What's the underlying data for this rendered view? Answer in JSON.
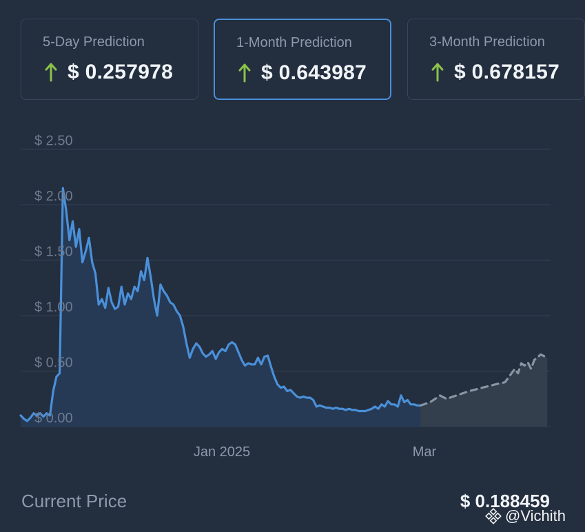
{
  "cards": [
    {
      "label": "5-Day Prediction",
      "value": "$ 0.257978",
      "trend": "up"
    },
    {
      "label": "1-Month Prediction",
      "value": "$ 0.643987",
      "trend": "up"
    },
    {
      "label": "3-Month Prediction",
      "value": "$ 0.678157",
      "trend": "up"
    }
  ],
  "colors": {
    "accent": "#4a90d9",
    "up": "#8bc34a",
    "forecast": "#8a95a3",
    "background": "#232e3f"
  },
  "footer": {
    "label": "Current Price",
    "value": "$ 0.188459"
  },
  "watermark": {
    "text": "@Vichith",
    "icon": "binance-logo-icon"
  },
  "chart_data": {
    "type": "line",
    "yticks": [
      "$ 0.00",
      "$ 0.50",
      "$ 1.00",
      "$ 1.50",
      "$ 2.00",
      "$ 2.50"
    ],
    "ylim": [
      0,
      2.5
    ],
    "xticks": [
      "Jan 2025",
      "Mar"
    ],
    "grid": true,
    "series": [
      {
        "style": "solid",
        "fill": true,
        "points": [
          [
            "2024-11-02",
            0.1
          ],
          [
            "2024-11-03",
            0.07
          ],
          [
            "2024-11-04",
            0.05
          ],
          [
            "2024-11-05",
            0.08
          ],
          [
            "2024-11-06",
            0.12
          ],
          [
            "2024-11-07",
            0.1
          ],
          [
            "2024-11-08",
            0.12
          ],
          [
            "2024-11-09",
            0.09
          ],
          [
            "2024-11-10",
            0.12
          ],
          [
            "2024-11-11",
            0.1
          ],
          [
            "2024-11-12",
            0.32
          ],
          [
            "2024-11-13",
            0.45
          ],
          [
            "2024-11-14",
            0.48
          ],
          [
            "2024-11-15",
            2.15
          ],
          [
            "2024-11-16",
            1.95
          ],
          [
            "2024-11-17",
            1.68
          ],
          [
            "2024-11-18",
            1.85
          ],
          [
            "2024-11-19",
            1.62
          ],
          [
            "2024-11-20",
            1.78
          ],
          [
            "2024-11-21",
            1.48
          ],
          [
            "2024-11-22",
            1.58
          ],
          [
            "2024-11-23",
            1.7
          ],
          [
            "2024-11-24",
            1.48
          ],
          [
            "2024-11-25",
            1.38
          ],
          [
            "2024-11-26",
            1.1
          ],
          [
            "2024-11-27",
            1.15
          ],
          [
            "2024-11-28",
            1.07
          ],
          [
            "2024-11-29",
            1.25
          ],
          [
            "2024-11-30",
            1.12
          ],
          [
            "2024-12-01",
            1.06
          ],
          [
            "2024-12-02",
            1.08
          ],
          [
            "2024-12-03",
            1.26
          ],
          [
            "2024-12-04",
            1.1
          ],
          [
            "2024-12-05",
            1.2
          ],
          [
            "2024-12-06",
            1.15
          ],
          [
            "2024-12-07",
            1.26
          ],
          [
            "2024-12-08",
            1.22
          ],
          [
            "2024-12-09",
            1.4
          ],
          [
            "2024-12-10",
            1.32
          ],
          [
            "2024-12-11",
            1.52
          ],
          [
            "2024-12-12",
            1.35
          ],
          [
            "2024-12-13",
            1.15
          ],
          [
            "2024-12-14",
            1.0
          ],
          [
            "2024-12-15",
            1.28
          ],
          [
            "2024-12-16",
            1.22
          ],
          [
            "2024-12-17",
            1.18
          ],
          [
            "2024-12-18",
            1.12
          ],
          [
            "2024-12-19",
            1.1
          ],
          [
            "2024-12-20",
            1.04
          ],
          [
            "2024-12-21",
            1.0
          ],
          [
            "2024-12-22",
            0.9
          ],
          [
            "2024-12-23",
            0.75
          ],
          [
            "2024-12-24",
            0.62
          ],
          [
            "2024-12-25",
            0.7
          ],
          [
            "2024-12-26",
            0.75
          ],
          [
            "2024-12-27",
            0.72
          ],
          [
            "2024-12-28",
            0.66
          ],
          [
            "2024-12-29",
            0.63
          ],
          [
            "2024-12-30",
            0.65
          ],
          [
            "2024-12-31",
            0.68
          ],
          [
            "2025-01-01",
            0.61
          ],
          [
            "2025-01-02",
            0.67
          ],
          [
            "2025-01-03",
            0.7
          ],
          [
            "2025-01-04",
            0.68
          ],
          [
            "2025-01-05",
            0.74
          ],
          [
            "2025-01-06",
            0.76
          ],
          [
            "2025-01-07",
            0.74
          ],
          [
            "2025-01-08",
            0.67
          ],
          [
            "2025-01-09",
            0.6
          ],
          [
            "2025-01-10",
            0.55
          ],
          [
            "2025-01-11",
            0.57
          ],
          [
            "2025-01-12",
            0.56
          ],
          [
            "2025-01-13",
            0.56
          ],
          [
            "2025-01-14",
            0.62
          ],
          [
            "2025-01-15",
            0.56
          ],
          [
            "2025-01-16",
            0.63
          ],
          [
            "2025-01-17",
            0.64
          ],
          [
            "2025-01-18",
            0.54
          ],
          [
            "2025-01-19",
            0.45
          ],
          [
            "2025-01-20",
            0.38
          ],
          [
            "2025-01-21",
            0.35
          ],
          [
            "2025-01-22",
            0.36
          ],
          [
            "2025-01-23",
            0.32
          ],
          [
            "2025-01-24",
            0.33
          ],
          [
            "2025-01-25",
            0.3
          ],
          [
            "2025-01-26",
            0.27
          ],
          [
            "2025-01-27",
            0.26
          ],
          [
            "2025-01-28",
            0.27
          ],
          [
            "2025-01-29",
            0.26
          ],
          [
            "2025-01-30",
            0.26
          ],
          [
            "2025-01-31",
            0.24
          ],
          [
            "2025-02-01",
            0.18
          ],
          [
            "2025-02-02",
            0.19
          ],
          [
            "2025-02-03",
            0.18
          ],
          [
            "2025-02-04",
            0.17
          ],
          [
            "2025-02-05",
            0.17
          ],
          [
            "2025-02-06",
            0.16
          ],
          [
            "2025-02-07",
            0.17
          ],
          [
            "2025-02-08",
            0.16
          ],
          [
            "2025-02-09",
            0.16
          ],
          [
            "2025-02-10",
            0.15
          ],
          [
            "2025-02-11",
            0.16
          ],
          [
            "2025-02-12",
            0.15
          ],
          [
            "2025-02-13",
            0.15
          ],
          [
            "2025-02-14",
            0.14
          ],
          [
            "2025-02-15",
            0.14
          ],
          [
            "2025-02-16",
            0.14
          ],
          [
            "2025-02-17",
            0.15
          ],
          [
            "2025-02-18",
            0.16
          ],
          [
            "2025-02-19",
            0.18
          ],
          [
            "2025-02-20",
            0.16
          ],
          [
            "2025-02-21",
            0.2
          ],
          [
            "2025-02-22",
            0.18
          ],
          [
            "2025-02-23",
            0.23
          ],
          [
            "2025-02-24",
            0.2
          ],
          [
            "2025-02-25",
            0.2
          ],
          [
            "2025-02-26",
            0.18
          ],
          [
            "2025-02-27",
            0.28
          ],
          [
            "2025-02-28",
            0.22
          ],
          [
            "2025-03-01",
            0.24
          ],
          [
            "2025-03-02",
            0.2
          ],
          [
            "2025-03-03",
            0.2
          ],
          [
            "2025-03-04",
            0.19
          ],
          [
            "2025-03-05",
            0.19
          ]
        ]
      },
      {
        "style": "dashed",
        "fill": true,
        "points": [
          [
            "2025-03-05",
            0.19
          ],
          [
            "2025-03-08",
            0.22
          ],
          [
            "2025-03-11",
            0.28
          ],
          [
            "2025-03-13",
            0.25
          ],
          [
            "2025-03-16",
            0.28
          ],
          [
            "2025-03-20",
            0.32
          ],
          [
            "2025-03-24",
            0.35
          ],
          [
            "2025-03-28",
            0.38
          ],
          [
            "2025-03-31",
            0.4
          ],
          [
            "2025-04-02",
            0.48
          ],
          [
            "2025-04-03",
            0.52
          ],
          [
            "2025-04-04",
            0.48
          ],
          [
            "2025-04-05",
            0.57
          ],
          [
            "2025-04-06",
            0.55
          ],
          [
            "2025-04-07",
            0.58
          ],
          [
            "2025-04-08",
            0.52
          ],
          [
            "2025-04-09",
            0.6
          ],
          [
            "2025-04-11",
            0.65
          ],
          [
            "2025-04-13",
            0.62
          ]
        ]
      }
    ]
  }
}
